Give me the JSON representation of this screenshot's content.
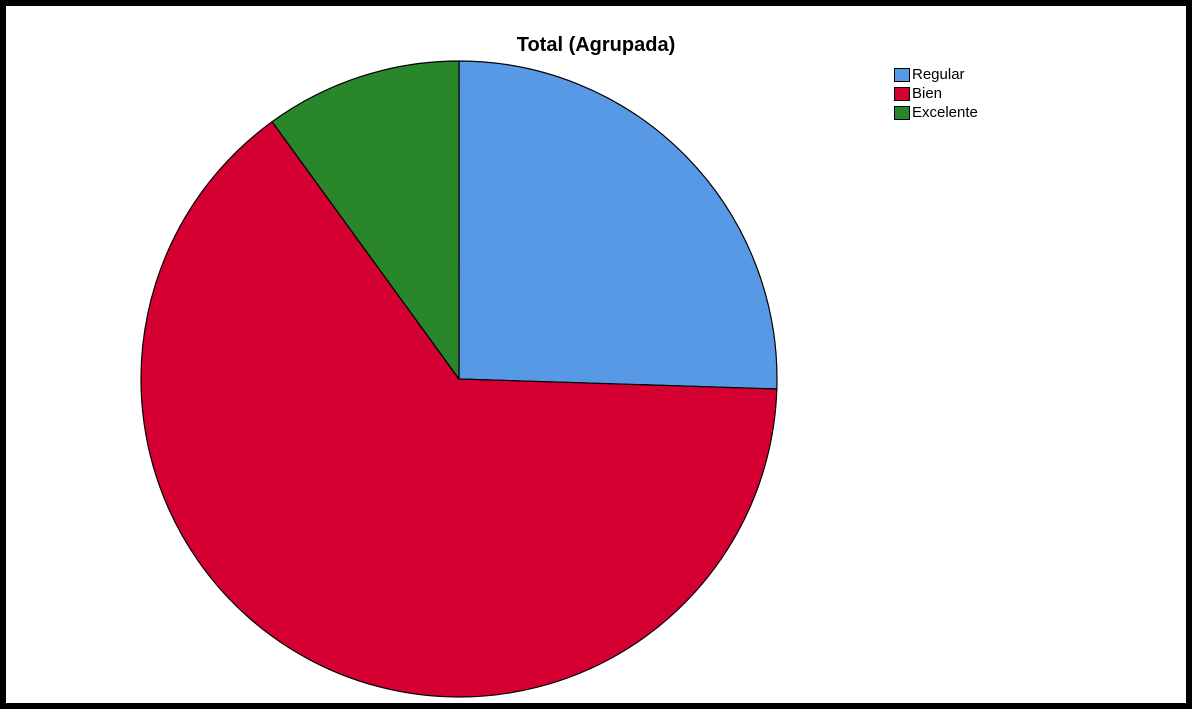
{
  "chart_data": {
    "type": "pie",
    "title": "Total (Agrupada)",
    "slices": [
      {
        "name": "Regular",
        "value": 25.5,
        "color": "#5899e6"
      },
      {
        "name": "Bien",
        "value": 64.5,
        "color": "#d50032"
      },
      {
        "name": "Excelente",
        "value": 10.0,
        "color": "#2a862a"
      }
    ],
    "start_angle_deg": 0,
    "direction": "clockwise",
    "legend_position": "top-right"
  }
}
